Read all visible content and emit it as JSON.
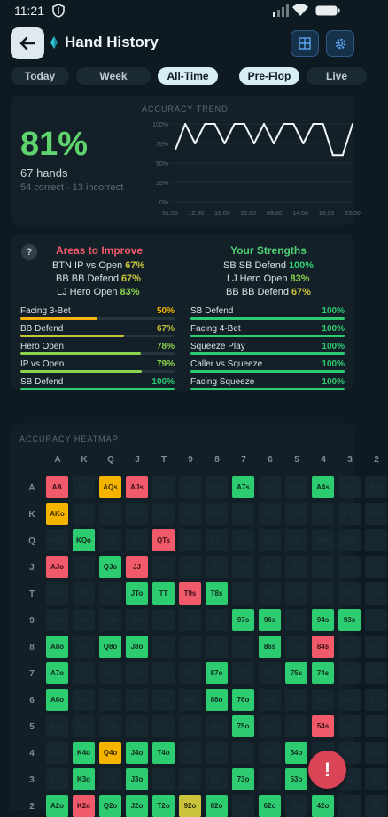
{
  "status_bar": {
    "time": "11:21"
  },
  "header": {
    "title": "Hand History"
  },
  "tabs": [
    {
      "label": "Today",
      "active": false
    },
    {
      "label": "Week",
      "active": false
    },
    {
      "label": "All-Time",
      "active": true
    },
    {
      "label": "Pre-Flop",
      "active": true
    },
    {
      "label": "Live",
      "active": false
    }
  ],
  "accuracy": {
    "percent": "81%",
    "hands": "67 hands",
    "breakdown": "54 correct · 13 incorrect",
    "trend_title": "ACCURACY TREND"
  },
  "chart_data": {
    "type": "line",
    "title": "ACCURACY TREND",
    "y_ticks": [
      "100%",
      "75%",
      "50%",
      "25%",
      "0%"
    ],
    "x_ticks": [
      "01:00",
      "12:00",
      "16:00",
      "20:00",
      "09:00",
      "14:00",
      "16:00",
      "23:00"
    ],
    "ylim": [
      0,
      100
    ],
    "values": [
      67,
      100,
      75,
      100,
      100,
      75,
      100,
      100,
      75,
      100,
      75,
      100,
      100,
      75,
      100,
      100,
      60,
      60,
      100
    ]
  },
  "areas": {
    "help": "?",
    "improve_title": "Areas to Improve",
    "strengths_title": "Your Strengths",
    "improve_summary": [
      {
        "label": "BTN IP vs Open",
        "value": "67%"
      },
      {
        "label": "BB BB Defend",
        "value": "67%"
      },
      {
        "label": "LJ Hero Open",
        "value": "83%"
      }
    ],
    "strength_summary": [
      {
        "label": "SB SB Defend",
        "value": "100%"
      },
      {
        "label": "LJ Hero Open",
        "value": "83%"
      },
      {
        "label": "BB BB Defend",
        "value": "67%"
      }
    ],
    "improve_bars": [
      {
        "label": "Facing 3-Bet",
        "value": "50%",
        "fraction": 0.5,
        "color": "#f4b400"
      },
      {
        "label": "BB Defend",
        "value": "67%",
        "fraction": 0.67,
        "color": "#c9c43b"
      },
      {
        "label": "Hero Open",
        "value": "78%",
        "fraction": 0.78,
        "color": "#8bd34b"
      },
      {
        "label": "IP vs Open",
        "value": "79%",
        "fraction": 0.79,
        "color": "#8bd34b"
      },
      {
        "label": "SB Defend",
        "value": "100%",
        "fraction": 1.0,
        "color": "#2ecc71"
      }
    ],
    "strength_bars": [
      {
        "label": "SB Defend",
        "value": "100%",
        "fraction": 1.0,
        "color": "#2ecc71"
      },
      {
        "label": "Facing 4-Bet",
        "value": "100%",
        "fraction": 1.0,
        "color": "#2ecc71"
      },
      {
        "label": "Squeeze Play",
        "value": "100%",
        "fraction": 1.0,
        "color": "#2ecc71"
      },
      {
        "label": "Caller vs Squeeze",
        "value": "100%",
        "fraction": 1.0,
        "color": "#2ecc71"
      },
      {
        "label": "Facing Squeeze",
        "value": "100%",
        "fraction": 1.0,
        "color": "#2ecc71"
      }
    ]
  },
  "heatmap": {
    "title": "ACCURACY HEATMAP",
    "ranks": [
      "A",
      "K",
      "Q",
      "J",
      "T",
      "9",
      "8",
      "7",
      "6",
      "5",
      "4",
      "3",
      "2"
    ],
    "highlight_cells": [
      {
        "hand": "AA",
        "status": "r"
      },
      {
        "hand": "AQs",
        "status": "y"
      },
      {
        "hand": "AJs",
        "status": "r"
      },
      {
        "hand": "A7s",
        "status": "g"
      },
      {
        "hand": "A4s",
        "status": "g"
      },
      {
        "hand": "AKo",
        "status": "y"
      },
      {
        "hand": "KQo",
        "status": "g"
      },
      {
        "hand": "QTs",
        "status": "r"
      },
      {
        "hand": "AJo",
        "status": "r"
      },
      {
        "hand": "QJo",
        "status": "g"
      },
      {
        "hand": "JJ",
        "status": "r"
      },
      {
        "hand": "JTo",
        "status": "g"
      },
      {
        "hand": "TT",
        "status": "g"
      },
      {
        "hand": "T9s",
        "status": "r"
      },
      {
        "hand": "T8s",
        "status": "g"
      },
      {
        "hand": "97s",
        "status": "g"
      },
      {
        "hand": "96s",
        "status": "g"
      },
      {
        "hand": "94s",
        "status": "g"
      },
      {
        "hand": "93s",
        "status": "g"
      },
      {
        "hand": "A8o",
        "status": "g"
      },
      {
        "hand": "Q8o",
        "status": "g"
      },
      {
        "hand": "J8o",
        "status": "g"
      },
      {
        "hand": "86s",
        "status": "g"
      },
      {
        "hand": "84s",
        "status": "r"
      },
      {
        "hand": "A7o",
        "status": "g"
      },
      {
        "hand": "87o",
        "status": "g"
      },
      {
        "hand": "75s",
        "status": "g"
      },
      {
        "hand": "74s",
        "status": "g"
      },
      {
        "hand": "A6o",
        "status": "g"
      },
      {
        "hand": "86o",
        "status": "g"
      },
      {
        "hand": "76o",
        "status": "g"
      },
      {
        "hand": "75o",
        "status": "g"
      },
      {
        "hand": "54s",
        "status": "r"
      },
      {
        "hand": "K4o",
        "status": "g"
      },
      {
        "hand": "Q4o",
        "status": "y"
      },
      {
        "hand": "J4o",
        "status": "g"
      },
      {
        "hand": "T4o",
        "status": "g"
      },
      {
        "hand": "54o",
        "status": "g"
      },
      {
        "hand": "K3o",
        "status": "g"
      },
      {
        "hand": "J3o",
        "status": "g"
      },
      {
        "hand": "73o",
        "status": "g"
      },
      {
        "hand": "53o",
        "status": "g"
      },
      {
        "hand": "A2o",
        "status": "g"
      },
      {
        "hand": "K2o",
        "status": "r"
      },
      {
        "hand": "Q2o",
        "status": "g"
      },
      {
        "hand": "J2o",
        "status": "g"
      },
      {
        "hand": "T2o",
        "status": "g"
      },
      {
        "hand": "92o",
        "status": "yg"
      },
      {
        "hand": "82o",
        "status": "g"
      },
      {
        "hand": "62o",
        "status": "g"
      },
      {
        "hand": "42o",
        "status": "g"
      }
    ]
  },
  "colors": {
    "accent_green": "#5fd36c",
    "correct": "#2ecc71",
    "incorrect": "#f05a6b",
    "mixed": "#f4b400",
    "background": "#0e1a22"
  },
  "icons": {
    "back": "arrow-left-icon",
    "brand": "diamond-icon",
    "grid": "grid-icon",
    "settings": "gear-icon",
    "fab": "exclamation-icon"
  },
  "fab": {
    "label": "!"
  }
}
